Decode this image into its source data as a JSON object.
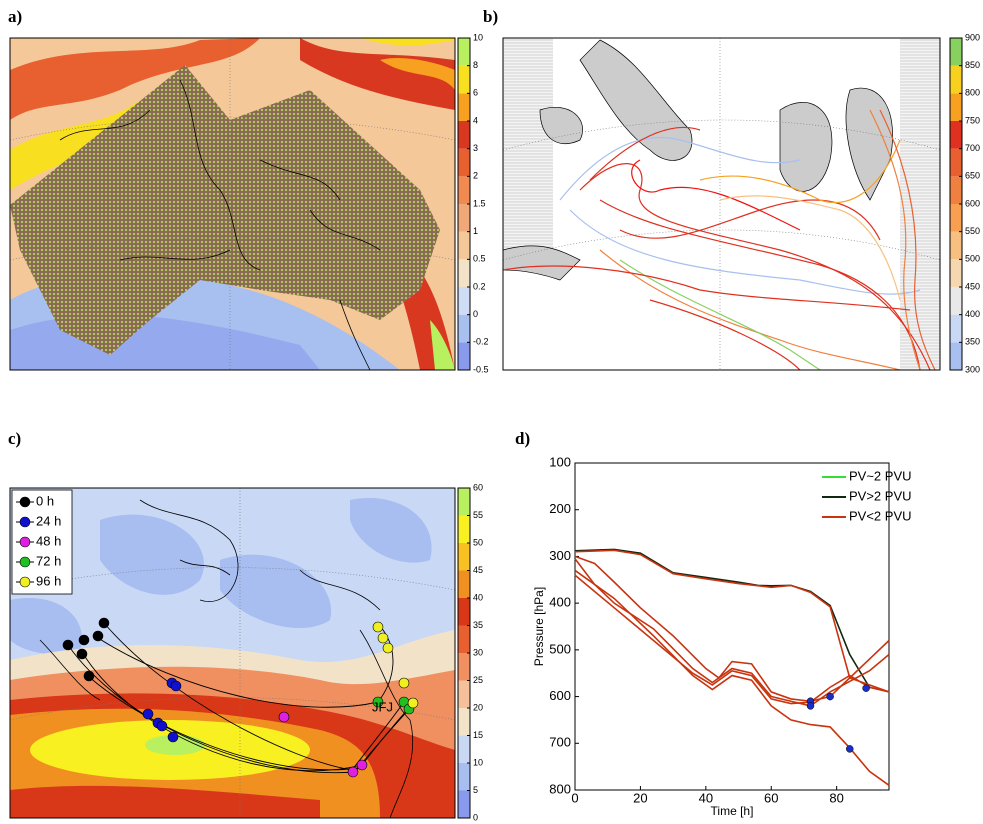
{
  "panels": [
    {
      "label": "a)",
      "colorbar": {
        "ticks": [
          -0.5,
          -0.2,
          0,
          0.2,
          0.5,
          1,
          1.5,
          2,
          3,
          4,
          6,
          8,
          10
        ],
        "colors": [
          "#8899ee",
          "#a8c0f0",
          "#cfdcf5",
          "#f2e3c8",
          "#f5c89a",
          "#f0a878",
          "#f08a50",
          "#e86030",
          "#d83820",
          "#f8a020",
          "#f8e020",
          "#b8f060"
        ]
      }
    },
    {
      "label": "b)",
      "colorbar": {
        "ticks": [
          300,
          350,
          400,
          450,
          500,
          550,
          600,
          650,
          700,
          750,
          800,
          850,
          900
        ],
        "colors": [
          "#a8c0f0",
          "#c8d8f5",
          "#e8e8e8",
          "#f5d8b0",
          "#f8c080",
          "#f8a050",
          "#f08040",
          "#e86030",
          "#e03020",
          "#f8a020",
          "#f8d020",
          "#88d060"
        ]
      }
    },
    {
      "label": "c)",
      "colorbar": {
        "ticks": [
          0,
          5,
          10,
          15,
          20,
          25,
          30,
          35,
          40,
          45,
          50,
          55,
          60
        ],
        "colors": [
          "#8899ee",
          "#a8bdf0",
          "#c8d8f5",
          "#f2e3c8",
          "#f5c09a",
          "#f09060",
          "#e86030",
          "#d83818",
          "#f09020",
          "#f8c020",
          "#f8f020",
          "#b8f060"
        ]
      },
      "legend": [
        {
          "name": "0 h",
          "color": "#000000"
        },
        {
          "name": "24 h",
          "color": "#1010d0"
        },
        {
          "name": "48 h",
          "color": "#e020e0"
        },
        {
          "name": "72 h",
          "color": "#20c020"
        },
        {
          "name": "96 h",
          "color": "#f0f020"
        }
      ],
      "annotation": "JFJ"
    }
  ],
  "chart_data": {
    "type": "line",
    "label": "d)",
    "xlabel": "Time [h]",
    "ylabel": "Pressure [hPa]",
    "xlim": [
      0,
      96
    ],
    "ylim": [
      100,
      800
    ],
    "y_inverted": true,
    "xticks": [
      0,
      20,
      40,
      60,
      80
    ],
    "yticks": [
      100,
      200,
      300,
      400,
      500,
      600,
      700,
      800
    ],
    "series": [
      {
        "name": "PV~2 PVU",
        "color": "#33dd33"
      },
      {
        "name": "PV>2 PVU",
        "color": "#102810"
      },
      {
        "name": "PV<2 PVU",
        "color": "#c8340f"
      }
    ],
    "trajectories": [
      {
        "color": "#102810",
        "x": [
          0,
          12,
          20,
          30,
          40,
          50,
          56,
          60,
          66,
          72,
          78,
          84,
          90,
          96
        ],
        "y": [
          288,
          285,
          293,
          335,
          345,
          355,
          362,
          363,
          362,
          375,
          405,
          510,
          580,
          590
        ]
      },
      {
        "color": "#c8340f",
        "x": [
          0,
          12,
          20,
          30,
          40,
          50,
          60,
          66,
          72,
          78,
          84,
          90,
          96
        ],
        "y": [
          290,
          287,
          296,
          337,
          348,
          358,
          366,
          362,
          377,
          408,
          560,
          575,
          590
        ]
      },
      {
        "color": "#c8340f",
        "x": [
          0,
          6,
          12,
          20,
          30,
          40,
          44,
          48,
          54,
          60,
          66,
          72,
          78,
          84,
          90,
          96
        ],
        "y": [
          300,
          315,
          355,
          410,
          470,
          540,
          560,
          525,
          530,
          590,
          605,
          610,
          600,
          560,
          520,
          480
        ]
      },
      {
        "color": "#c8340f",
        "x": [
          0,
          6,
          12,
          24,
          36,
          42,
          48,
          54,
          60,
          66,
          72,
          78,
          90,
          96
        ],
        "y": [
          305,
          360,
          400,
          455,
          540,
          570,
          540,
          550,
          600,
          610,
          620,
          590,
          545,
          510
        ]
      },
      {
        "color": "#c8340f",
        "x": [
          0,
          6,
          12,
          24,
          36,
          42,
          48,
          54,
          60,
          66,
          72,
          78,
          84,
          90,
          96
        ],
        "y": [
          330,
          360,
          390,
          470,
          555,
          585,
          555,
          565,
          620,
          650,
          660,
          665,
          710,
          760,
          790
        ]
      },
      {
        "color": "#c8340f",
        "x": [
          0,
          6,
          12,
          24,
          36,
          42,
          48,
          54,
          60,
          66,
          72,
          78,
          84,
          90,
          96
        ],
        "y": [
          340,
          375,
          410,
          480,
          550,
          575,
          545,
          555,
          605,
          615,
          612,
          580,
          555,
          580,
          590
        ]
      }
    ],
    "markers": {
      "color": "#1a2ec8",
      "x": [
        72,
        72,
        78,
        84,
        89
      ],
      "y": [
        610,
        620,
        600,
        712,
        582
      ]
    }
  }
}
